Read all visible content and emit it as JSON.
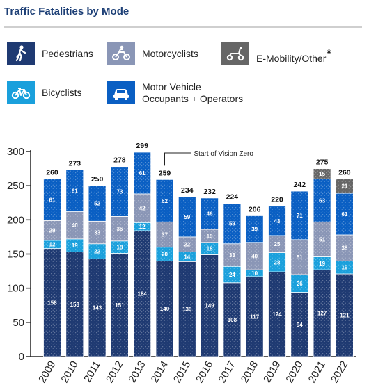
{
  "header": {
    "title": "Traffic Fatalities by Mode"
  },
  "legend": {
    "pedestrians": "Pedestrians",
    "motorcyclists": "Motorcyclists",
    "emobility": "E-Mobility/Other",
    "emobility_note": "*",
    "bicyclists": "Bicyclists",
    "motor_vehicle_line1": "Motor Vehicle",
    "motor_vehicle_line2": "Occupants + Operators"
  },
  "icons": {
    "pedestrians": "walking-person-icon",
    "motorcyclists": "motorcycle-icon",
    "emobility": "scooter-icon",
    "bicyclists": "bicycle-icon",
    "motor_vehicle": "car-icon"
  },
  "colors": {
    "pedestrians": "#1f3a72",
    "bicyclists": "#1aa0dc",
    "motorcyclists": "#8a96b6",
    "motor_vehicle": "#0a5fc3",
    "emobility": "#666666",
    "title": "#1d3f76"
  },
  "chart_data": {
    "type": "bar",
    "stacked": true,
    "categories": [
      "2009",
      "2010",
      "2011",
      "2012",
      "2013",
      "2014",
      "2015",
      "2016",
      "2017",
      "2018",
      "2019",
      "2020",
      "2021",
      "2022"
    ],
    "series": [
      {
        "name": "Pedestrians",
        "values": [
          158,
          153,
          143,
          151,
          184,
          140,
          139,
          149,
          108,
          117,
          124,
          94,
          127,
          121
        ]
      },
      {
        "name": "Bicyclists",
        "values": [
          12,
          19,
          22,
          18,
          12,
          20,
          14,
          18,
          24,
          10,
          28,
          26,
          19,
          19
        ]
      },
      {
        "name": "Motorcyclists",
        "values": [
          29,
          40,
          33,
          36,
          42,
          37,
          22,
          19,
          33,
          40,
          25,
          51,
          51,
          38
        ]
      },
      {
        "name": "Motor Vehicle Occupants + Operators",
        "values": [
          61,
          61,
          52,
          73,
          61,
          62,
          59,
          46,
          59,
          39,
          43,
          71,
          63,
          61
        ]
      },
      {
        "name": "E-Mobility/Other",
        "values": [
          0,
          0,
          0,
          0,
          0,
          0,
          0,
          0,
          0,
          0,
          0,
          0,
          15,
          21
        ]
      }
    ],
    "totals": [
      260,
      273,
      250,
      278,
      299,
      259,
      234,
      232,
      224,
      206,
      220,
      242,
      275,
      260
    ],
    "ylim": [
      0,
      300
    ],
    "yticks": [
      0,
      50,
      100,
      150,
      200,
      250,
      300
    ],
    "annotation": {
      "text": "Start of Vision Zero",
      "category": "2014"
    },
    "grid": false
  }
}
